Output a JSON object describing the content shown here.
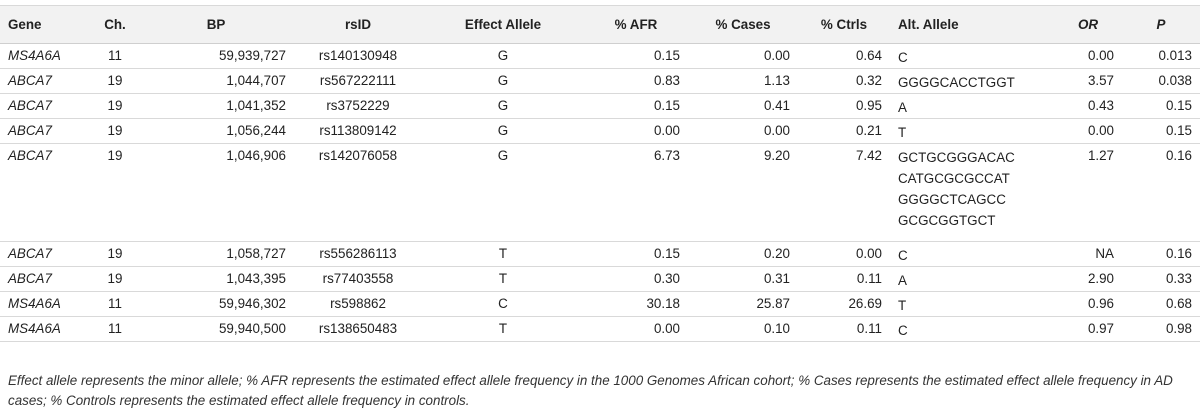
{
  "table": {
    "headers": {
      "gene": "Gene",
      "ch": "Ch.",
      "bp": "BP",
      "rsid": "rsID",
      "effect": "Effect Allele",
      "afr": "% AFR",
      "cases": "% Cases",
      "ctrls": "% Ctrls",
      "alt": "Alt. Allele",
      "or": "OR",
      "p": "P"
    },
    "rows": [
      {
        "gene": "MS4A6A",
        "ch": "11",
        "bp": "59,939,727",
        "rsid": "rs140130948",
        "effect": "G",
        "afr": "0.15",
        "cases": "0.00",
        "ctrls": "0.64",
        "alt": [
          "C"
        ],
        "or": "0.00",
        "p": "0.013"
      },
      {
        "gene": "ABCA7",
        "ch": "19",
        "bp": "1,044,707",
        "rsid": "rs567222111",
        "effect": "G",
        "afr": "0.83",
        "cases": "1.13",
        "ctrls": "0.32",
        "alt": [
          "GGGGCACCTGGT"
        ],
        "or": "3.57",
        "p": "0.038"
      },
      {
        "gene": "ABCA7",
        "ch": "19",
        "bp": "1,041,352",
        "rsid": "rs3752229",
        "effect": "G",
        "afr": "0.15",
        "cases": "0.41",
        "ctrls": "0.95",
        "alt": [
          "A"
        ],
        "or": "0.43",
        "p": "0.15"
      },
      {
        "gene": "ABCA7",
        "ch": "19",
        "bp": "1,056,244",
        "rsid": "rs113809142",
        "effect": "G",
        "afr": "0.00",
        "cases": "0.00",
        "ctrls": "0.21",
        "alt": [
          "T"
        ],
        "or": "0.00",
        "p": "0.15"
      },
      {
        "gene": "ABCA7",
        "ch": "19",
        "bp": "1,046,906",
        "rsid": "rs142076058",
        "effect": "G",
        "afr": "6.73",
        "cases": "9.20",
        "ctrls": "7.42",
        "alt": [
          "GCTGCGGGACAC",
          "CATGCGCGCCAT",
          "GGGGCTCAGCC",
          "GCGCGGTGCT"
        ],
        "or": "1.27",
        "p": "0.16"
      },
      {
        "gene": "ABCA7",
        "ch": "19",
        "bp": "1,058,727",
        "rsid": "rs556286113",
        "effect": "T",
        "afr": "0.15",
        "cases": "0.20",
        "ctrls": "0.00",
        "alt": [
          "C"
        ],
        "or": "NA",
        "p": "0.16"
      },
      {
        "gene": "ABCA7",
        "ch": "19",
        "bp": "1,043,395",
        "rsid": "rs77403558",
        "effect": "T",
        "afr": "0.30",
        "cases": "0.31",
        "ctrls": "0.11",
        "alt": [
          "A"
        ],
        "or": "2.90",
        "p": "0.33"
      },
      {
        "gene": "MS4A6A",
        "ch": "11",
        "bp": "59,946,302",
        "rsid": "rs598862",
        "effect": "C",
        "afr": "30.18",
        "cases": "25.87",
        "ctrls": "26.69",
        "alt": [
          "T"
        ],
        "or": "0.96",
        "p": "0.68"
      },
      {
        "gene": "MS4A6A",
        "ch": "11",
        "bp": "59,940,500",
        "rsid": "rs138650483",
        "effect": "T",
        "afr": "0.00",
        "cases": "0.10",
        "ctrls": "0.11",
        "alt": [
          "C"
        ],
        "or": "0.97",
        "p": "0.98"
      }
    ]
  },
  "footnote": "Effect allele represents the minor allele; % AFR represents the estimated effect allele frequency in the 1000 Genomes African cohort; % Cases represents the estimated effect allele frequency in AD cases; % Controls represents the estimated effect allele frequency in controls."
}
